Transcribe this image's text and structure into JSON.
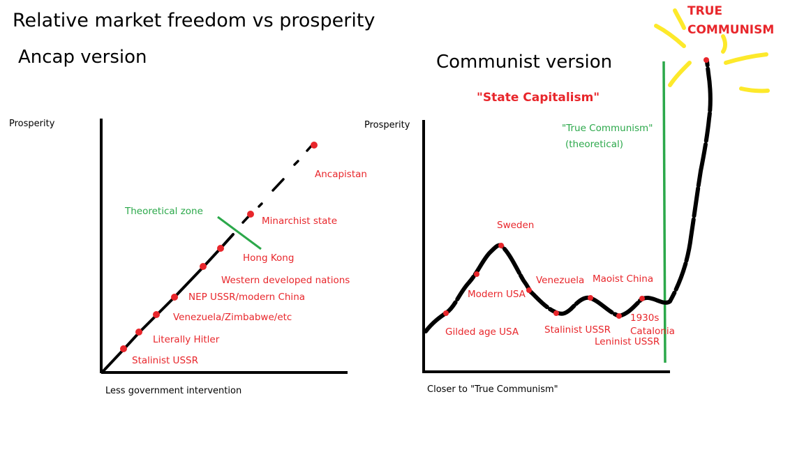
{
  "title": "Relative market freedom vs prosperity",
  "colors": {
    "red": "#e8262b",
    "green": "#2ba84a",
    "yellow": "#fde92b",
    "black": "#000000"
  },
  "ancap": {
    "heading": "Ancap version",
    "ylabel": "Prosperity",
    "xlabel": "Less government intervention",
    "theoretical_label": "Theoretical zone",
    "points": [
      "Stalinist USSR",
      "Literally Hitler",
      "Venezuela/Zimbabwe/etc",
      "NEP USSR/modern China",
      "Western developed nations",
      "Hong Kong",
      "Minarchist state",
      "Ancapistan"
    ]
  },
  "communist": {
    "heading": "Communist version",
    "subheading": "\"State Capitalism\"",
    "ylabel": "Prosperity",
    "xlabel": "Closer to \"True Communism\"",
    "theoretical_label_1": "\"True Communism\"",
    "theoretical_label_2": "(theoretical)",
    "true_communism_label_1": "TRUE",
    "true_communism_label_2": "COMMUNISM",
    "points": [
      "Gilded age USA",
      "Modern USA",
      "Sweden",
      "Venezuela",
      "Stalinist USSR",
      "Maoist China",
      "Leninist USSR",
      "1930s",
      "Catalonia"
    ]
  }
}
